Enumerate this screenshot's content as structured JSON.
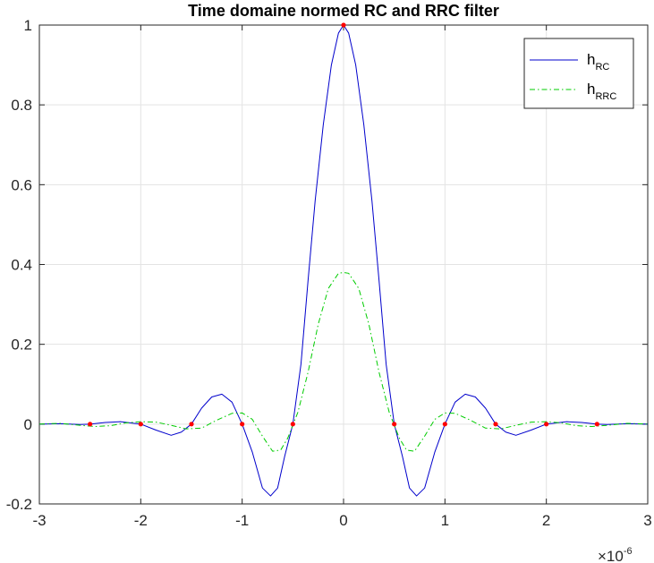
{
  "chart_data": {
    "type": "line",
    "title": "Time domaine normed RC and RRC filter",
    "xlabel": "",
    "ylabel": "",
    "xlim": [
      -3,
      3
    ],
    "ylim": [
      -0.2,
      1
    ],
    "x_ticks": [
      -3,
      -2,
      -1,
      0,
      1,
      2,
      3
    ],
    "y_ticks": [
      -0.2,
      0,
      0.2,
      0.4,
      0.6,
      0.8,
      1
    ],
    "x_tick_labels": [
      "-3",
      "-2",
      "-1",
      "0",
      "1",
      "2",
      "3"
    ],
    "y_tick_labels": [
      "-0.2",
      "0",
      "0.2",
      "0.4",
      "0.6",
      "0.8",
      "1"
    ],
    "x_exponent_label": "×10",
    "x_exponent_power": "-6",
    "grid": true,
    "legend_position": "top-right",
    "series": [
      {
        "name": "h",
        "name_sub": "RC",
        "color": "#0000cc",
        "style": "solid",
        "points": [
          [
            -3,
            0
          ],
          [
            -2.8,
            0.001
          ],
          [
            -2.6,
            -0.001
          ],
          [
            -2.5,
            0
          ],
          [
            -2.35,
            0.004
          ],
          [
            -2.2,
            0.006
          ],
          [
            -2.0,
            0
          ],
          [
            -1.85,
            -0.015
          ],
          [
            -1.7,
            -0.028
          ],
          [
            -1.6,
            -0.02
          ],
          [
            -1.5,
            0
          ],
          [
            -1.4,
            0.04
          ],
          [
            -1.3,
            0.068
          ],
          [
            -1.2,
            0.075
          ],
          [
            -1.1,
            0.055
          ],
          [
            -1.0,
            0
          ],
          [
            -0.9,
            -0.07
          ],
          [
            -0.8,
            -0.16
          ],
          [
            -0.72,
            -0.18
          ],
          [
            -0.65,
            -0.16
          ],
          [
            -0.58,
            -0.08
          ],
          [
            -0.5,
            0
          ],
          [
            -0.42,
            0.15
          ],
          [
            -0.35,
            0.36
          ],
          [
            -0.28,
            0.56
          ],
          [
            -0.2,
            0.75
          ],
          [
            -0.12,
            0.9
          ],
          [
            -0.05,
            0.98
          ],
          [
            0,
            1
          ],
          [
            0.05,
            0.98
          ],
          [
            0.12,
            0.9
          ],
          [
            0.2,
            0.75
          ],
          [
            0.28,
            0.56
          ],
          [
            0.35,
            0.36
          ],
          [
            0.42,
            0.15
          ],
          [
            0.5,
            0
          ],
          [
            0.58,
            -0.08
          ],
          [
            0.65,
            -0.16
          ],
          [
            0.72,
            -0.18
          ],
          [
            0.8,
            -0.16
          ],
          [
            0.9,
            -0.07
          ],
          [
            1.0,
            0
          ],
          [
            1.1,
            0.055
          ],
          [
            1.2,
            0.075
          ],
          [
            1.3,
            0.068
          ],
          [
            1.4,
            0.04
          ],
          [
            1.5,
            0
          ],
          [
            1.6,
            -0.02
          ],
          [
            1.7,
            -0.028
          ],
          [
            1.85,
            -0.015
          ],
          [
            2.0,
            0
          ],
          [
            2.2,
            0.006
          ],
          [
            2.35,
            0.004
          ],
          [
            2.5,
            0
          ],
          [
            2.6,
            -0.001
          ],
          [
            2.8,
            0.001
          ],
          [
            3,
            0
          ]
        ]
      },
      {
        "name": "h",
        "name_sub": "RRC",
        "color": "#00cc00",
        "style": "dashdot",
        "points": [
          [
            -3,
            0
          ],
          [
            -2.8,
            0.002
          ],
          [
            -2.6,
            -0.003
          ],
          [
            -2.45,
            -0.006
          ],
          [
            -2.3,
            -0.004
          ],
          [
            -2.15,
            0.003
          ],
          [
            -2.0,
            0.006
          ],
          [
            -1.85,
            0.005
          ],
          [
            -1.7,
            -0.003
          ],
          [
            -1.55,
            -0.012
          ],
          [
            -1.4,
            -0.01
          ],
          [
            -1.25,
            0.01
          ],
          [
            -1.1,
            0.027
          ],
          [
            -1.0,
            0.028
          ],
          [
            -0.9,
            0.012
          ],
          [
            -0.8,
            -0.03
          ],
          [
            -0.7,
            -0.068
          ],
          [
            -0.62,
            -0.065
          ],
          [
            -0.55,
            -0.035
          ],
          [
            -0.45,
            0.03
          ],
          [
            -0.35,
            0.13
          ],
          [
            -0.25,
            0.25
          ],
          [
            -0.15,
            0.34
          ],
          [
            -0.05,
            0.378
          ],
          [
            0,
            0.38
          ],
          [
            0.05,
            0.378
          ],
          [
            0.15,
            0.34
          ],
          [
            0.25,
            0.25
          ],
          [
            0.35,
            0.13
          ],
          [
            0.45,
            0.03
          ],
          [
            0.55,
            -0.035
          ],
          [
            0.62,
            -0.065
          ],
          [
            0.7,
            -0.068
          ],
          [
            0.8,
            -0.03
          ],
          [
            0.9,
            0.012
          ],
          [
            1.0,
            0.028
          ],
          [
            1.1,
            0.027
          ],
          [
            1.25,
            0.01
          ],
          [
            1.4,
            -0.01
          ],
          [
            1.55,
            -0.012
          ],
          [
            1.7,
            -0.003
          ],
          [
            1.85,
            0.005
          ],
          [
            2.0,
            0.006
          ],
          [
            2.15,
            0.003
          ],
          [
            2.3,
            -0.004
          ],
          [
            2.45,
            -0.006
          ],
          [
            2.6,
            -0.003
          ],
          [
            2.8,
            0.002
          ],
          [
            3,
            0
          ]
        ]
      }
    ],
    "sample_markers": {
      "color": "#ff0000",
      "points": [
        [
          -2.5,
          0
        ],
        [
          -2,
          0
        ],
        [
          -1.5,
          0
        ],
        [
          -1,
          0
        ],
        [
          -0.5,
          0
        ],
        [
          0,
          1
        ],
        [
          0.5,
          0
        ],
        [
          1,
          0
        ],
        [
          1.5,
          0
        ],
        [
          2,
          0
        ],
        [
          2.5,
          0
        ]
      ]
    }
  }
}
